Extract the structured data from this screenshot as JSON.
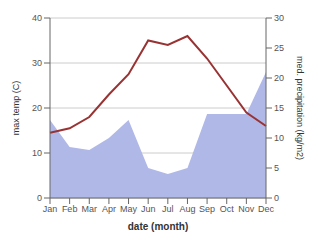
{
  "chart_data": {
    "type": "line",
    "xlabel": "date (month)",
    "ylabel": "max temp (C)",
    "y2label": "med. precipitation (kg/m2)",
    "categories": [
      "Jan",
      "Feb",
      "Mar",
      "Apr",
      "May",
      "Jun",
      "Jul",
      "Aug",
      "Sep",
      "Oct",
      "Nov",
      "Dec"
    ],
    "series": [
      {
        "type": "area",
        "axis": "y2",
        "color": "#b0b8e8",
        "values": [
          13.0,
          8.5,
          8.0,
          10.0,
          13.0,
          5.0,
          4.0,
          5.0,
          14.0,
          14.0,
          14.0,
          21.0
        ]
      },
      {
        "type": "line",
        "color": "#993333",
        "values": [
          14.5,
          15.5,
          18.0,
          23.0,
          27.5,
          35.0,
          34.0,
          36.0,
          31.0,
          25.0,
          19.0,
          16.0
        ]
      }
    ],
    "ylim": [
      0,
      40
    ],
    "yticks": [
      0,
      10,
      20,
      30,
      40
    ],
    "y2lim": [
      0,
      30
    ],
    "y2ticks": [
      0,
      5,
      10,
      15,
      20,
      25,
      30
    ],
    "grid": true
  }
}
